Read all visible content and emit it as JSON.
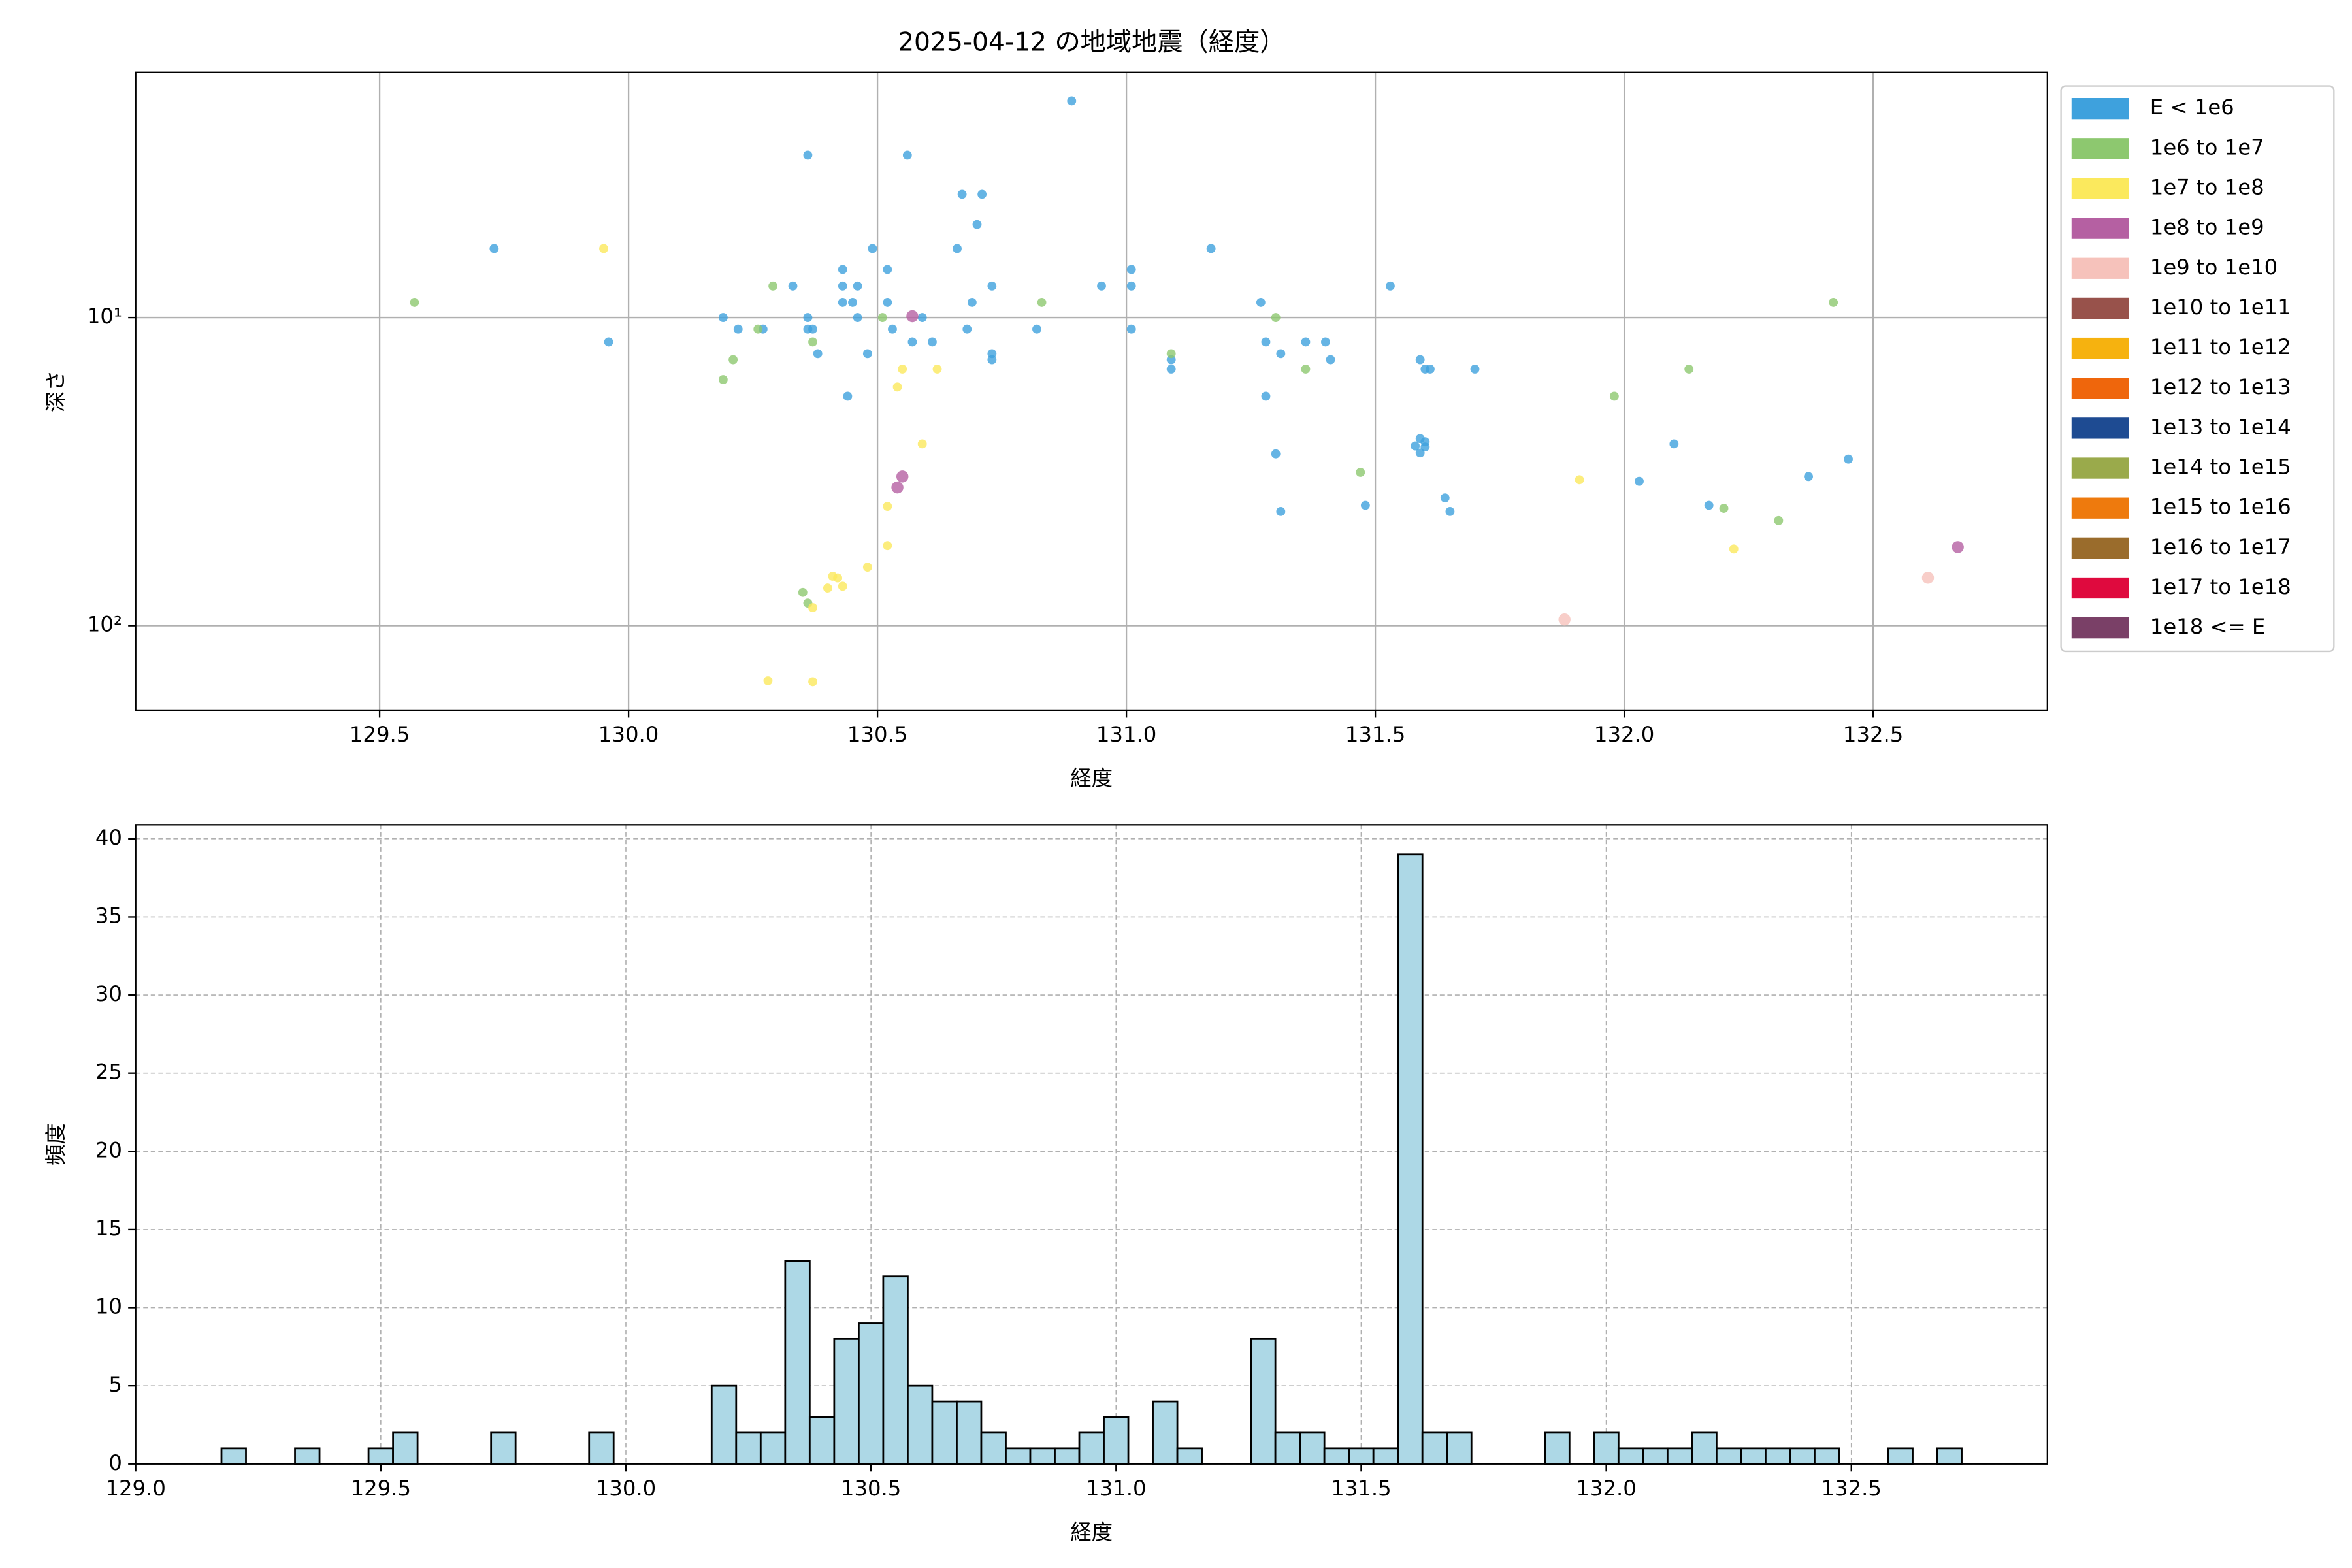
{
  "chart_data": [
    {
      "type": "scatter",
      "title": "2025-04-12 の地域地震（経度）",
      "xlabel": "経度",
      "ylabel": "深さ",
      "xlim": [
        129.01,
        132.85
      ],
      "ylim": [
        188,
        1.6
      ],
      "ylog": true,
      "xticks": [
        129.5,
        {
          "value": 130,
          "label": "130.0"
        },
        130.5,
        {
          "value": 131,
          "label": "131.0"
        },
        131.5,
        {
          "value": 132,
          "label": "132.0"
        },
        132.5
      ],
      "yticks": [
        {
          "value": 10,
          "label": "10¹"
        },
        {
          "value": 100,
          "label": "10²"
        }
      ],
      "grid": true,
      "grid_linestyle": "solid",
      "legend": "outside right",
      "series": [
        {
          "name": "E < 1e6",
          "color": "#3ea1dd",
          "x": [
            130.89,
            130.36,
            130.56,
            130.67,
            130.71,
            130.7,
            129.73,
            130.49,
            130.66,
            131.17,
            131.01,
            130.43,
            130.52,
            130.33,
            130.43,
            130.46,
            130.73,
            130.95,
            131.01,
            131.53,
            130.43,
            130.45,
            130.52,
            130.69,
            131.27,
            130.19,
            130.36,
            130.46,
            130.59,
            130.22,
            130.27,
            130.36,
            130.37,
            130.53,
            130.68,
            130.82,
            131.01,
            129.96,
            130.57,
            130.61,
            131.28,
            131.36,
            131.4,
            130.38,
            130.48,
            130.73,
            131.31,
            130.73,
            131.09,
            131.41,
            131.59,
            131.09,
            131.6,
            131.61,
            131.7,
            130.44,
            131.28,
            131.59,
            131.6,
            131.6,
            131.59,
            131.58,
            132.1,
            131.3,
            132.45,
            132.37,
            132.03,
            131.64,
            131.48,
            132.17,
            131.31,
            131.65
          ],
          "y": [
            1.98,
            2.97,
            2.97,
            3.98,
            3.98,
            4.99,
            5.97,
            5.97,
            5.97,
            5.97,
            6.98,
            6.98,
            6.98,
            7.9,
            7.9,
            7.9,
            7.9,
            7.9,
            7.9,
            7.9,
            8.93,
            8.93,
            8.93,
            8.93,
            8.93,
            10,
            10,
            10,
            10,
            10.9,
            10.9,
            10.9,
            10.9,
            10.9,
            10.9,
            10.9,
            10.9,
            12,
            12,
            12,
            12,
            12,
            12,
            13.1,
            13.1,
            13.1,
            13.1,
            13.7,
            13.7,
            13.7,
            13.7,
            14.7,
            14.7,
            14.7,
            14.7,
            18,
            18,
            24.7,
            25.3,
            26.3,
            27.5,
            26.1,
            25.7,
            27.7,
            28.8,
            32.8,
            34,
            38.5,
            40.7,
            40.7,
            42.6,
            42.6
          ]
        },
        {
          "name": "1e6 to 1e7",
          "color": "#8dc86f",
          "x": [
            129.57,
            130.83,
            130.29,
            131.3,
            132.42,
            130.26,
            130.37,
            131.09,
            130.21,
            130.19,
            131.36,
            132.13,
            131.98,
            130.51,
            131.47,
            132.2,
            132.31,
            130.35,
            130.36
          ],
          "y": [
            8.93,
            8.93,
            7.9,
            10,
            8.93,
            10.9,
            12,
            13.1,
            13.7,
            15.9,
            14.7,
            14.7,
            18,
            10,
            31.8,
            41.6,
            45.6,
            78,
            84.5
          ]
        },
        {
          "name": "1e7 to 1e8",
          "color": "#fbe95d",
          "x": [
            129.95,
            130.55,
            130.62,
            130.54,
            130.59,
            131.91,
            130.52,
            130.52,
            132.22,
            130.48,
            130.41,
            130.42,
            130.4,
            130.43,
            130.37,
            130.28,
            130.37
          ],
          "y": [
            5.97,
            14.7,
            14.7,
            16.8,
            25.7,
            33.6,
            41,
            55,
            56.4,
            64.6,
            69.1,
            70,
            75.5,
            74.5,
            87.4,
            151,
            152
          ]
        },
        {
          "name": "1e8 to 1e9",
          "color": "#b560a2",
          "x": [
            130.57,
            130.55,
            130.54,
            132.67
          ],
          "y": [
            9.9,
            32.8,
            35.6,
            55.6
          ]
        },
        {
          "name": "1e9 to 1e10",
          "color": "#f6c2bb",
          "x": [
            131.88,
            132.61
          ],
          "y": [
            95.5,
            69.9
          ]
        },
        {
          "name": "1e10 to 1e11",
          "color": "#98524b",
          "x": [],
          "y": []
        },
        {
          "name": "1e11 to 1e12",
          "color": "#f6b20f",
          "x": [],
          "y": []
        },
        {
          "name": "1e12 to 1e13",
          "color": "#ef660c",
          "x": [],
          "y": []
        },
        {
          "name": "1e13 to 1e14",
          "color": "#1e4b92",
          "x": [],
          "y": []
        },
        {
          "name": "1e14 to 1e15",
          "color": "#9aaa4b",
          "x": [],
          "y": []
        },
        {
          "name": "1e15 to 1e16",
          "color": "#ee7a0d",
          "x": [],
          "y": []
        },
        {
          "name": "1e16 to 1e17",
          "color": "#9a6c2c",
          "x": [],
          "y": []
        },
        {
          "name": "1e17 to 1e18",
          "color": "#df0a3e",
          "x": [],
          "y": []
        },
        {
          "name": "1e18 <= E",
          "color": "#7a4067",
          "x": [],
          "y": []
        }
      ]
    },
    {
      "type": "histogram",
      "xlabel": "経度",
      "ylabel": "頻度",
      "color": "#add8e6",
      "edgecolor": "#000000",
      "xlim": [
        129.0,
        132.9
      ],
      "ylim": [
        0,
        40.9
      ],
      "xticks": [
        {
          "value": 129,
          "label": "129.0"
        },
        129.5,
        {
          "value": 130,
          "label": "130.0"
        },
        130.5,
        {
          "value": 131,
          "label": "131.0"
        },
        131.5,
        {
          "value": 132,
          "label": "132.0"
        },
        132.5
      ],
      "yticks": [
        0,
        5,
        10,
        15,
        20,
        25,
        30,
        35,
        40
      ],
      "grid": true,
      "grid_linestyle": "dashed",
      "bins": [
        129.175,
        129.225,
        129.275,
        129.325,
        129.375,
        129.425,
        129.475,
        129.525,
        129.575,
        129.625,
        129.675,
        129.725,
        129.775,
        129.825,
        129.875,
        129.925,
        129.975,
        130.025,
        130.075,
        130.125,
        130.175,
        130.225,
        130.275,
        130.325,
        130.375,
        130.425,
        130.475,
        130.525,
        130.575,
        130.625,
        130.675,
        130.725,
        130.775,
        130.825,
        130.875,
        130.925,
        130.975,
        131.025,
        131.075,
        131.125,
        131.175,
        131.225,
        131.275,
        131.325,
        131.375,
        131.425,
        131.475,
        131.525,
        131.575,
        131.625,
        131.675,
        131.725,
        131.775,
        131.825,
        131.875,
        131.925,
        131.975,
        132.025,
        132.075,
        132.125,
        132.175,
        132.225,
        132.275,
        132.325,
        132.375,
        132.425,
        132.475,
        132.525,
        132.575,
        132.625,
        132.675,
        132.725
      ],
      "counts": [
        1,
        0,
        0,
        1,
        0,
        0,
        1,
        2,
        0,
        0,
        0,
        2,
        0,
        0,
        0,
        2,
        0,
        0,
        0,
        0,
        5,
        2,
        2,
        13,
        3,
        8,
        9,
        12,
        5,
        4,
        4,
        2,
        1,
        1,
        1,
        2,
        3,
        0,
        4,
        1,
        0,
        0,
        8,
        2,
        2,
        1,
        1,
        1,
        39,
        2,
        2,
        0,
        0,
        0,
        2,
        0,
        2,
        1,
        1,
        1,
        2,
        1,
        1,
        1,
        1,
        1,
        0,
        0,
        1,
        0,
        1
      ]
    }
  ]
}
